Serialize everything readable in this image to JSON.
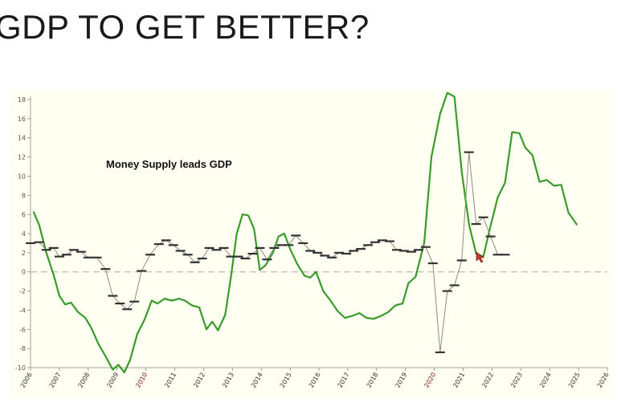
{
  "slide": {
    "title": "GDP TO GET BETTER?"
  },
  "chart_data": {
    "type": "line",
    "title": "",
    "xlabel": "",
    "ylabel": "",
    "annotation": "Money Supply leads GDP",
    "xlim": [
      2006,
      2026
    ],
    "ylim": [
      -10,
      18
    ],
    "y_ticks": [
      -10,
      -8,
      -6,
      -4,
      -2,
      0,
      2,
      4,
      6,
      8,
      10,
      12,
      14,
      16,
      18
    ],
    "x_ticks": [
      {
        "label": "2006",
        "value": 2006,
        "color": "#333333"
      },
      {
        "label": "2007",
        "value": 2007,
        "color": "#333333"
      },
      {
        "label": "2008",
        "value": 2008,
        "color": "#333333"
      },
      {
        "label": "2009",
        "value": 2009,
        "color": "#333333"
      },
      {
        "label": "2010",
        "value": 2010,
        "color": "#8b1a1a"
      },
      {
        "label": "2011",
        "value": 2011,
        "color": "#333333"
      },
      {
        "label": "2012",
        "value": 2012,
        "color": "#333333"
      },
      {
        "label": "2013",
        "value": 2013,
        "color": "#333333"
      },
      {
        "label": "2014",
        "value": 2014,
        "color": "#333333"
      },
      {
        "label": "2015",
        "value": 2015,
        "color": "#333333"
      },
      {
        "label": "2016",
        "value": 2016,
        "color": "#333333"
      },
      {
        "label": "2017",
        "value": 2017,
        "color": "#333333"
      },
      {
        "label": "2018",
        "value": 2018,
        "color": "#333333"
      },
      {
        "label": "2019",
        "value": 2019,
        "color": "#333333"
      },
      {
        "label": "2020",
        "value": 2020,
        "color": "#8b1a1a"
      },
      {
        "label": "2021",
        "value": 2021,
        "color": "#333333"
      },
      {
        "label": "2022",
        "value": 2022,
        "color": "#333333"
      },
      {
        "label": "2023",
        "value": 2023,
        "color": "#333333"
      },
      {
        "label": "2024",
        "value": 2024,
        "color": "#333333"
      },
      {
        "label": "2025",
        "value": 2025,
        "color": "#333333"
      },
      {
        "label": "2026",
        "value": 2026,
        "color": "#333333"
      }
    ],
    "zero_line": {
      "y": 0,
      "style": "dashed",
      "color": "#aaaaaa"
    },
    "series": [
      {
        "style": "line",
        "color": "#3a9a2a",
        "points": [
          [
            2006.1,
            6.3
          ],
          [
            2006.3,
            4.9
          ],
          [
            2006.55,
            2.0
          ],
          [
            2006.8,
            -0.3
          ],
          [
            2007.0,
            -2.5
          ],
          [
            2007.2,
            -3.4
          ],
          [
            2007.4,
            -3.2
          ],
          [
            2007.65,
            -4.2
          ],
          [
            2007.9,
            -4.8
          ],
          [
            2008.1,
            -5.8
          ],
          [
            2008.35,
            -7.5
          ],
          [
            2008.6,
            -8.8
          ],
          [
            2008.85,
            -10.2
          ],
          [
            2009.05,
            -9.7
          ],
          [
            2009.25,
            -10.5
          ],
          [
            2009.45,
            -9.2
          ],
          [
            2009.7,
            -6.5
          ],
          [
            2009.95,
            -5.0
          ],
          [
            2010.2,
            -3.0
          ],
          [
            2010.4,
            -3.3
          ],
          [
            2010.65,
            -2.8
          ],
          [
            2010.9,
            -3.0
          ],
          [
            2011.15,
            -2.8
          ],
          [
            2011.35,
            -3.0
          ],
          [
            2011.6,
            -3.5
          ],
          [
            2011.85,
            -3.7
          ],
          [
            2012.1,
            -6.0
          ],
          [
            2012.3,
            -5.2
          ],
          [
            2012.5,
            -6.1
          ],
          [
            2012.75,
            -4.5
          ],
          [
            2012.95,
            -0.5
          ],
          [
            2013.15,
            4.0
          ],
          [
            2013.35,
            6.0
          ],
          [
            2013.55,
            5.9
          ],
          [
            2013.75,
            4.5
          ],
          [
            2013.95,
            0.2
          ],
          [
            2014.15,
            0.7
          ],
          [
            2014.4,
            2.0
          ],
          [
            2014.6,
            3.7
          ],
          [
            2014.8,
            4.0
          ],
          [
            2015.0,
            2.4
          ],
          [
            2015.25,
            0.8
          ],
          [
            2015.5,
            -0.4
          ],
          [
            2015.7,
            -0.6
          ],
          [
            2015.9,
            0.0
          ],
          [
            2016.15,
            -2.0
          ],
          [
            2016.4,
            -3.0
          ],
          [
            2016.65,
            -4.1
          ],
          [
            2016.9,
            -4.8
          ],
          [
            2017.15,
            -4.6
          ],
          [
            2017.4,
            -4.3
          ],
          [
            2017.65,
            -4.8
          ],
          [
            2017.9,
            -4.9
          ],
          [
            2018.15,
            -4.6
          ],
          [
            2018.4,
            -4.2
          ],
          [
            2018.65,
            -3.5
          ],
          [
            2018.9,
            -3.3
          ],
          [
            2019.1,
            -1.2
          ],
          [
            2019.35,
            -0.5
          ],
          [
            2019.65,
            3.0
          ],
          [
            2019.9,
            12.0
          ],
          [
            2020.2,
            16.5
          ],
          [
            2020.45,
            18.7
          ],
          [
            2020.7,
            18.3
          ],
          [
            2020.95,
            10.5
          ],
          [
            2021.2,
            5.0
          ],
          [
            2021.45,
            1.9
          ],
          [
            2021.7,
            1.6
          ],
          [
            2021.95,
            4.8
          ],
          [
            2022.2,
            7.8
          ],
          [
            2022.45,
            9.3
          ],
          [
            2022.7,
            14.6
          ],
          [
            2022.95,
            14.5
          ],
          [
            2023.15,
            13.0
          ],
          [
            2023.4,
            12.2
          ],
          [
            2023.65,
            9.4
          ],
          [
            2023.9,
            9.6
          ],
          [
            2024.15,
            9.0
          ],
          [
            2024.4,
            9.1
          ],
          [
            2024.65,
            6.2
          ],
          [
            2024.95,
            4.9
          ]
        ]
      },
      {
        "style": "step",
        "color": "#333333",
        "points": [
          [
            2006.0,
            3.0
          ],
          [
            2006.3,
            3.1
          ],
          [
            2006.55,
            2.3
          ],
          [
            2006.8,
            2.5
          ],
          [
            2007.0,
            1.6
          ],
          [
            2007.25,
            1.8
          ],
          [
            2007.5,
            2.3
          ],
          [
            2007.75,
            2.1
          ],
          [
            2008.0,
            1.5
          ],
          [
            2008.3,
            1.5
          ],
          [
            2008.6,
            0.3
          ],
          [
            2008.85,
            -2.5
          ],
          [
            2009.1,
            -3.3
          ],
          [
            2009.35,
            -3.9
          ],
          [
            2009.6,
            -3.1
          ],
          [
            2009.85,
            0.1
          ],
          [
            2010.15,
            1.8
          ],
          [
            2010.45,
            2.9
          ],
          [
            2010.7,
            3.3
          ],
          [
            2010.95,
            2.8
          ],
          [
            2011.2,
            2.2
          ],
          [
            2011.45,
            1.8
          ],
          [
            2011.7,
            1.0
          ],
          [
            2011.95,
            1.4
          ],
          [
            2012.2,
            2.5
          ],
          [
            2012.45,
            2.3
          ],
          [
            2012.7,
            2.5
          ],
          [
            2012.95,
            1.6
          ],
          [
            2013.2,
            1.6
          ],
          [
            2013.45,
            1.4
          ],
          [
            2013.7,
            1.9
          ],
          [
            2013.95,
            2.5
          ],
          [
            2014.2,
            1.3
          ],
          [
            2014.45,
            2.5
          ],
          [
            2014.7,
            2.8
          ],
          [
            2014.95,
            2.8
          ],
          [
            2015.2,
            3.8
          ],
          [
            2015.45,
            3.0
          ],
          [
            2015.7,
            2.2
          ],
          [
            2015.95,
            2.0
          ],
          [
            2016.2,
            1.7
          ],
          [
            2016.45,
            1.5
          ],
          [
            2016.7,
            2.0
          ],
          [
            2016.95,
            1.9
          ],
          [
            2017.2,
            2.2
          ],
          [
            2017.45,
            2.4
          ],
          [
            2017.7,
            2.8
          ],
          [
            2017.95,
            3.1
          ],
          [
            2018.2,
            3.3
          ],
          [
            2018.45,
            3.2
          ],
          [
            2018.7,
            2.3
          ],
          [
            2018.95,
            2.2
          ],
          [
            2019.2,
            2.1
          ],
          [
            2019.45,
            2.3
          ],
          [
            2019.7,
            2.6
          ],
          [
            2019.95,
            0.9
          ],
          [
            2020.2,
            -8.4
          ],
          [
            2020.45,
            -2.0
          ],
          [
            2020.7,
            -1.4
          ],
          [
            2020.95,
            1.2
          ],
          [
            2021.2,
            12.5
          ],
          [
            2021.45,
            5.0
          ],
          [
            2021.7,
            5.7
          ],
          [
            2021.95,
            3.7
          ],
          [
            2022.2,
            1.8
          ],
          [
            2022.45,
            1.8
          ]
        ]
      }
    ]
  }
}
